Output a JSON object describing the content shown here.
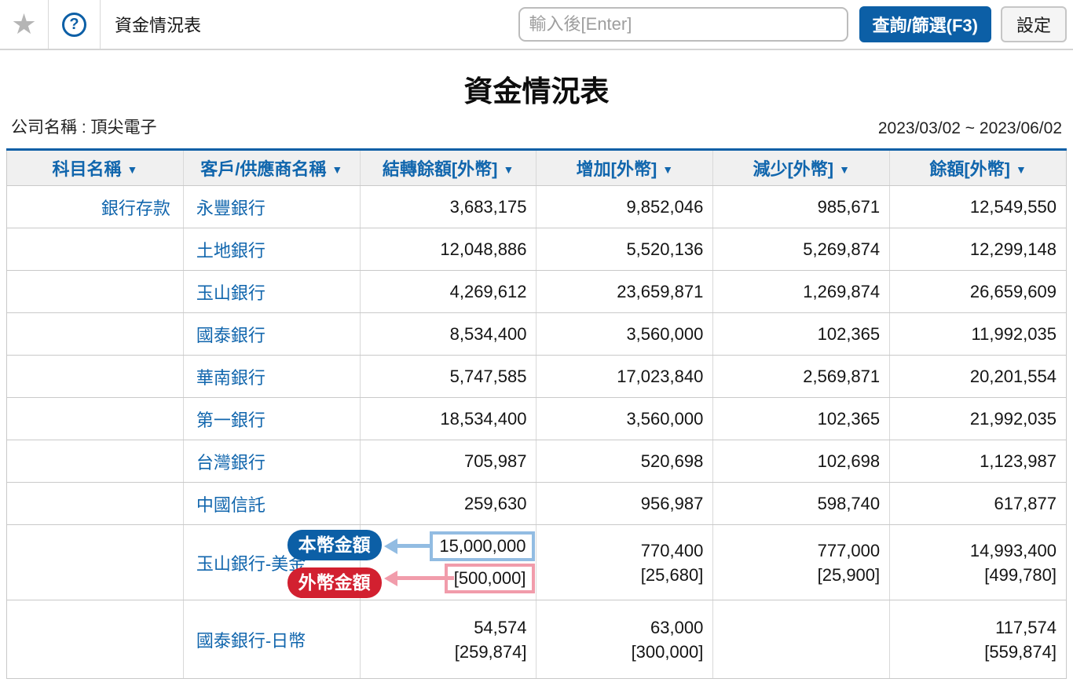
{
  "toolbar": {
    "title": "資金情況表",
    "search_placeholder": "輸入後[Enter]",
    "query_button": "查詢/篩選(F3)",
    "settings_button": "設定",
    "help_symbol": "?"
  },
  "icons": {
    "star": "★",
    "sort": "▼"
  },
  "report": {
    "title": "資金情況表",
    "company": "公司名稱 : 頂尖電子",
    "date_range": "2023/03/02 ~ 2023/06/02"
  },
  "table": {
    "columns": [
      {
        "label": "科目名稱"
      },
      {
        "label": "客戶/供應商名稱"
      },
      {
        "label": "結轉餘額[外幣]"
      },
      {
        "label": "增加[外幣]"
      },
      {
        "label": "減少[外幣]"
      },
      {
        "label": "餘額[外幣]"
      }
    ],
    "rows": [
      {
        "account": "銀行存款",
        "name": "永豐銀行",
        "opening": "3,683,175",
        "increase": "9,852,046",
        "decrease": "985,671",
        "balance": "12,549,550"
      },
      {
        "account": "",
        "name": "土地銀行",
        "opening": "12,048,886",
        "increase": "5,520,136",
        "decrease": "5,269,874",
        "balance": "12,299,148"
      },
      {
        "account": "",
        "name": "玉山銀行",
        "opening": "4,269,612",
        "increase": "23,659,871",
        "decrease": "1,269,874",
        "balance": "26,659,609"
      },
      {
        "account": "",
        "name": "國泰銀行",
        "opening": "8,534,400",
        "increase": "3,560,000",
        "decrease": "102,365",
        "balance": "11,992,035"
      },
      {
        "account": "",
        "name": "華南銀行",
        "opening": "5,747,585",
        "increase": "17,023,840",
        "decrease": "2,569,871",
        "balance": "20,201,554"
      },
      {
        "account": "",
        "name": "第一銀行",
        "opening": "18,534,400",
        "increase": "3,560,000",
        "decrease": "102,365",
        "balance": "21,992,035"
      },
      {
        "account": "",
        "name": "台灣銀行",
        "opening": "705,987",
        "increase": "520,698",
        "decrease": "102,698",
        "balance": "1,123,987"
      },
      {
        "account": "",
        "name": "中國信託",
        "opening": "259,630",
        "increase": "956,987",
        "decrease": "598,740",
        "balance": "617,877"
      },
      {
        "account": "",
        "name": "玉山銀行-美金",
        "annotated": true,
        "opening": [
          "15,000,000",
          "[500,000]"
        ],
        "increase": [
          "770,400",
          "[25,680]"
        ],
        "decrease": [
          "777,000",
          "[25,900]"
        ],
        "balance": [
          "14,993,400",
          "[499,780]"
        ]
      },
      {
        "account": "",
        "name": "國泰銀行-日幣",
        "opening": [
          "54,574",
          "[259,874]"
        ],
        "increase": [
          "63,000",
          "[300,000]"
        ],
        "decrease": "",
        "balance": [
          "117,574",
          "[559,874]"
        ]
      }
    ]
  },
  "annotations": {
    "local_currency_label": "本幣金額",
    "foreign_currency_label": "外幣金額"
  },
  "colors": {
    "accent_blue": "#0c5fa6",
    "link_blue": "#1166ad",
    "annotation_red": "#d22030",
    "arrow_blue": "#92bce2",
    "arrow_pink": "#f19cab",
    "header_bg": "#f0f0f0"
  }
}
